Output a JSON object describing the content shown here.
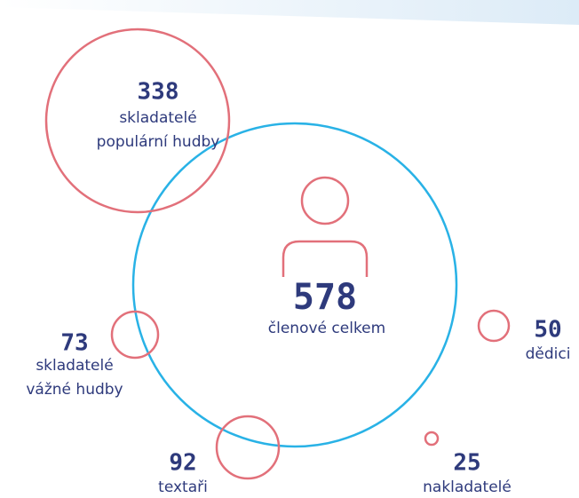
{
  "total": {
    "value": "578",
    "label": [
      "členové celkem"
    ]
  },
  "groups": [
    {
      "value": "338",
      "label": [
        "skladatelé",
        "populární hudby"
      ]
    },
    {
      "value": "73",
      "label": [
        "skladatelé",
        "vážné hudby"
      ]
    },
    {
      "value": "92",
      "label": [
        "textaři"
      ]
    },
    {
      "value": "25",
      "label": [
        "nakladatelé"
      ]
    },
    {
      "value": "50",
      "label": [
        "dědici"
      ]
    }
  ]
}
